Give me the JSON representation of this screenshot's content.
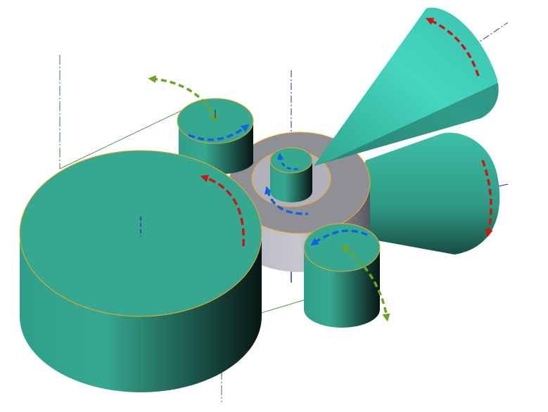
{
  "colors": {
    "background": "#ffffff",
    "teal_light": "#45d6bf",
    "teal": "#37a890",
    "teal_dark": "#1d5a4e",
    "shadow": "#071612",
    "ring_face": "#8f9096",
    "ring_side": "#c4c5cc",
    "outline": "#f2a820",
    "rotation_red": "#d01414",
    "rotation_blue": "#1160e8",
    "rotation_green": "#6ba526",
    "axis_green": "#2f7d2f",
    "axis_blue": "#1b2f8a"
  },
  "parts": [
    {
      "name": "large-gear-cylinder",
      "shape": "cylinder",
      "rotation_arrow": "red"
    },
    {
      "name": "small-gear-top-cylinder",
      "shape": "cylinder",
      "rotation_arrow": "blue",
      "axis_arrow": "green"
    },
    {
      "name": "small-gear-bottom-cylinder",
      "shape": "cylinder",
      "rotation_arrow": "blue",
      "axis_arrow": "green"
    },
    {
      "name": "ring-gear",
      "shape": "ring",
      "rotation_arrow": "blue"
    },
    {
      "name": "sun-gear-cylinder",
      "shape": "cylinder",
      "rotation_arrow": "blue"
    },
    {
      "name": "cone-upper",
      "shape": "cone",
      "rotation_arrow": "red"
    },
    {
      "name": "cone-lower",
      "shape": "cone",
      "rotation_arrow": "red"
    }
  ]
}
